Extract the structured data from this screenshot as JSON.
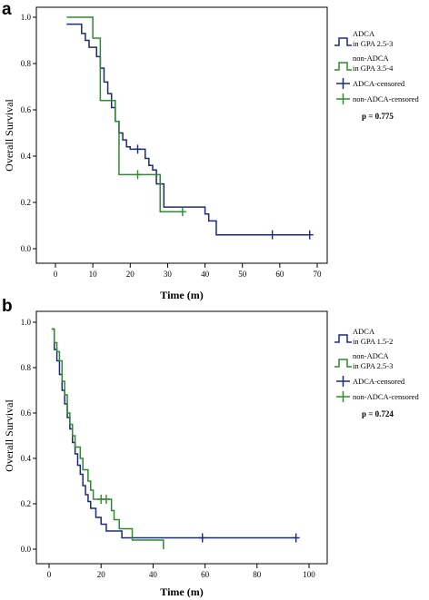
{
  "panels": [
    {
      "letter": "a",
      "legend": {
        "line1": [
          "ADCA",
          "in GPA 2.5-3"
        ],
        "line2": [
          "non-ADCA",
          "in GPA 3.5-4"
        ],
        "censor1": "ADCA-censored",
        "censor2": "non-ADCA-censored"
      },
      "p_value": "p = 0.775"
    },
    {
      "letter": "b",
      "legend": {
        "line1": [
          "ADCA",
          "in GPA 1.5-2"
        ],
        "line2": [
          "non-ADCA",
          "in GPA 2.5-3"
        ],
        "censor1": "ADCA-censored",
        "censor2": "non-ADCA-censored"
      },
      "p_value": "p = 0.724"
    }
  ],
  "colors": {
    "adca": "#1c2a7a",
    "non_adca": "#2e8b2e",
    "axis": "#000000"
  },
  "chart_data": [
    {
      "type": "line",
      "subtype": "kaplan-meier step",
      "xlabel": "Time (m)",
      "ylabel": "Overall Survival",
      "xlim": [
        0,
        70
      ],
      "ylim": [
        0,
        1.0
      ],
      "xticks": [
        0,
        10,
        20,
        30,
        40,
        50,
        60,
        70
      ],
      "yticks": [
        0.0,
        0.2,
        0.4,
        0.6,
        0.8,
        1.0
      ],
      "ytick_labels": [
        "0.0",
        "0.2",
        "0.4",
        "0.6",
        "0.8",
        "1.0"
      ],
      "grid": false,
      "legend_position": "right",
      "series": [
        {
          "name": "ADCA in GPA 2.5-3",
          "x": [
            3,
            7,
            8,
            9,
            11,
            12,
            13,
            14,
            15,
            16,
            17,
            18,
            19,
            20,
            24,
            25,
            26,
            27,
            29,
            40,
            41,
            43,
            68
          ],
          "y": [
            0.97,
            0.93,
            0.9,
            0.87,
            0.83,
            0.78,
            0.72,
            0.67,
            0.61,
            0.55,
            0.5,
            0.47,
            0.44,
            0.43,
            0.39,
            0.36,
            0.34,
            0.28,
            0.18,
            0.15,
            0.12,
            0.06,
            0.06
          ],
          "censored": [
            {
              "x": 22,
              "y": 0.43
            },
            {
              "x": 58,
              "y": 0.06
            },
            {
              "x": 68,
              "y": 0.06
            }
          ]
        },
        {
          "name": "non-ADCA in GPA 3.5-4",
          "x": [
            3,
            10,
            12,
            16,
            17,
            28,
            34
          ],
          "y": [
            1.0,
            0.91,
            0.64,
            0.55,
            0.32,
            0.16,
            0.16
          ],
          "censored": [
            {
              "x": 22,
              "y": 0.32
            },
            {
              "x": 34,
              "y": 0.16
            }
          ]
        }
      ]
    },
    {
      "type": "line",
      "subtype": "kaplan-meier step",
      "xlabel": "Time (m)",
      "ylabel": "Overall Survival",
      "xlim": [
        0,
        100
      ],
      "ylim": [
        0,
        1.0
      ],
      "xticks": [
        0,
        20,
        40,
        60,
        80,
        100
      ],
      "yticks": [
        0.0,
        0.2,
        0.4,
        0.6,
        0.8,
        1.0
      ],
      "ytick_labels": [
        "0.0",
        "0.2",
        "0.4",
        "0.6",
        "0.8",
        "1.0"
      ],
      "grid": false,
      "legend_position": "right",
      "series": [
        {
          "name": "ADCA in GPA 1.5-2",
          "x": [
            1,
            2,
            3,
            4,
            5,
            6,
            7,
            8,
            9,
            10,
            11,
            12,
            13,
            14,
            15,
            16,
            18,
            20,
            22,
            28,
            95
          ],
          "y": [
            0.97,
            0.88,
            0.83,
            0.77,
            0.7,
            0.64,
            0.58,
            0.53,
            0.47,
            0.42,
            0.37,
            0.33,
            0.28,
            0.24,
            0.21,
            0.18,
            0.14,
            0.11,
            0.08,
            0.05,
            0.05
          ],
          "censored": [
            {
              "x": 59,
              "y": 0.05
            },
            {
              "x": 95,
              "y": 0.05
            }
          ]
        },
        {
          "name": "non-ADCA in GPA 2.5-3",
          "x": [
            1,
            2,
            3,
            4,
            5,
            6,
            7,
            8,
            9,
            10,
            12,
            13,
            15,
            16,
            17,
            19,
            24,
            25,
            27,
            32,
            44
          ],
          "y": [
            0.97,
            0.91,
            0.87,
            0.83,
            0.74,
            0.68,
            0.6,
            0.55,
            0.5,
            0.45,
            0.4,
            0.35,
            0.3,
            0.26,
            0.22,
            0.22,
            0.17,
            0.13,
            0.09,
            0.04,
            0.0
          ],
          "censored": [
            {
              "x": 20,
              "y": 0.22
            },
            {
              "x": 22,
              "y": 0.22
            }
          ]
        }
      ]
    }
  ]
}
